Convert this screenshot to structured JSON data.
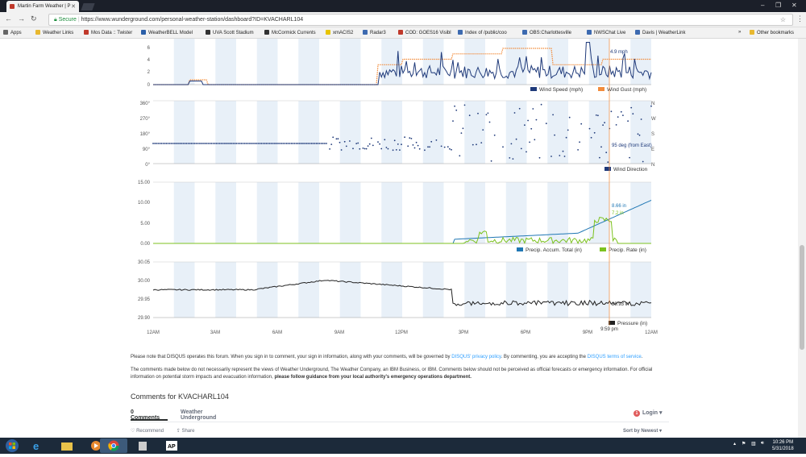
{
  "browser": {
    "tab_title": "Martin Farm Weather | P",
    "secure_label": "Secure",
    "url": "https://www.wunderground.com/personal-weather-station/dashboard?ID=KVACHARL104"
  },
  "bookmarks": [
    {
      "label": "Apps"
    },
    {
      "label": "Weather Links"
    },
    {
      "label": "Mos Data :: Twister"
    },
    {
      "label": "WeatherBELL Model"
    },
    {
      "label": "UVA Scott Stadium"
    },
    {
      "label": "McCormick Currents"
    },
    {
      "label": "xmACIS2"
    },
    {
      "label": "Radar3"
    },
    {
      "label": "COD: GOES16 Visibl"
    },
    {
      "label": "Index of /public/coo"
    },
    {
      "label": "OBS:Charlottesville"
    },
    {
      "label": "NWSChat Live"
    },
    {
      "label": "Davis | WeatherLink"
    },
    {
      "label": "Other bookmarks"
    }
  ],
  "charts": {
    "wind": {
      "y_ticks": [
        "6",
        "4",
        "2",
        "0"
      ],
      "annotation": "4.9 mph",
      "legend": [
        "Wind Speed (mph)",
        "Wind Gust (mph)"
      ],
      "colors": {
        "speed": "#1f3a7a",
        "gust": "#f28c3c"
      }
    },
    "direction": {
      "y_ticks": [
        "360°",
        "270°",
        "180°",
        "90°",
        "0°"
      ],
      "right_ticks": [
        "N",
        "W",
        "S",
        "E",
        "N"
      ],
      "annotation": "95 deg (from East)",
      "legend": [
        "Wind Direction"
      ]
    },
    "precip": {
      "y_ticks": [
        "15.00",
        "10.00",
        "5.00",
        "0.00"
      ],
      "annotation_total": "8.66 in",
      "annotation_rate": "7.2 in",
      "legend": [
        "Precip. Accum. Total (in)",
        "Precip. Rate (in)"
      ],
      "colors": {
        "total": "#1f77b4",
        "rate": "#7cc21f"
      }
    },
    "pressure": {
      "y_ticks": [
        "30.05",
        "30.00",
        "29.95",
        "29.90"
      ],
      "annotation": "29.93 in",
      "legend": [
        "Pressure (in)"
      ]
    },
    "x_ticks": [
      "12AM",
      "3AM",
      "6AM",
      "9AM",
      "12PM",
      "3PM",
      "6PM",
      "9PM",
      "12AM"
    ],
    "cursor_time": "9:59 pm"
  },
  "disqus": {
    "note_1": "Please note that DISQUS operates this forum. When you sign in to comment, your sign in information, along with your comments, will be governed by",
    "privacy_link": "DISQUS' privacy policy",
    "note_2": ". By commenting, you are accepting the",
    "terms_link": "DISQUS terms of service",
    "note_3": "The comments made below do not necessarily represent the views of Weather Underground, The Weather Company, an IBM Business, or IBM. Comments below should not be perceived as official forecasts or emergency information. For official information on potential storm impacts and evacuation information,",
    "note_3_bold": "please follow guidance from your local authority's emergency operations department.",
    "comments_title": "Comments for KVACHARL104",
    "tab_comments": "0 Comments",
    "tab_site": "Weather Underground",
    "login_badge": "1",
    "login": "Login",
    "recommend": "Recommend",
    "share": "Share",
    "sort": "Sort by Newest"
  },
  "taskbar": {
    "time": "10:26 PM",
    "date": "5/31/2018"
  }
}
